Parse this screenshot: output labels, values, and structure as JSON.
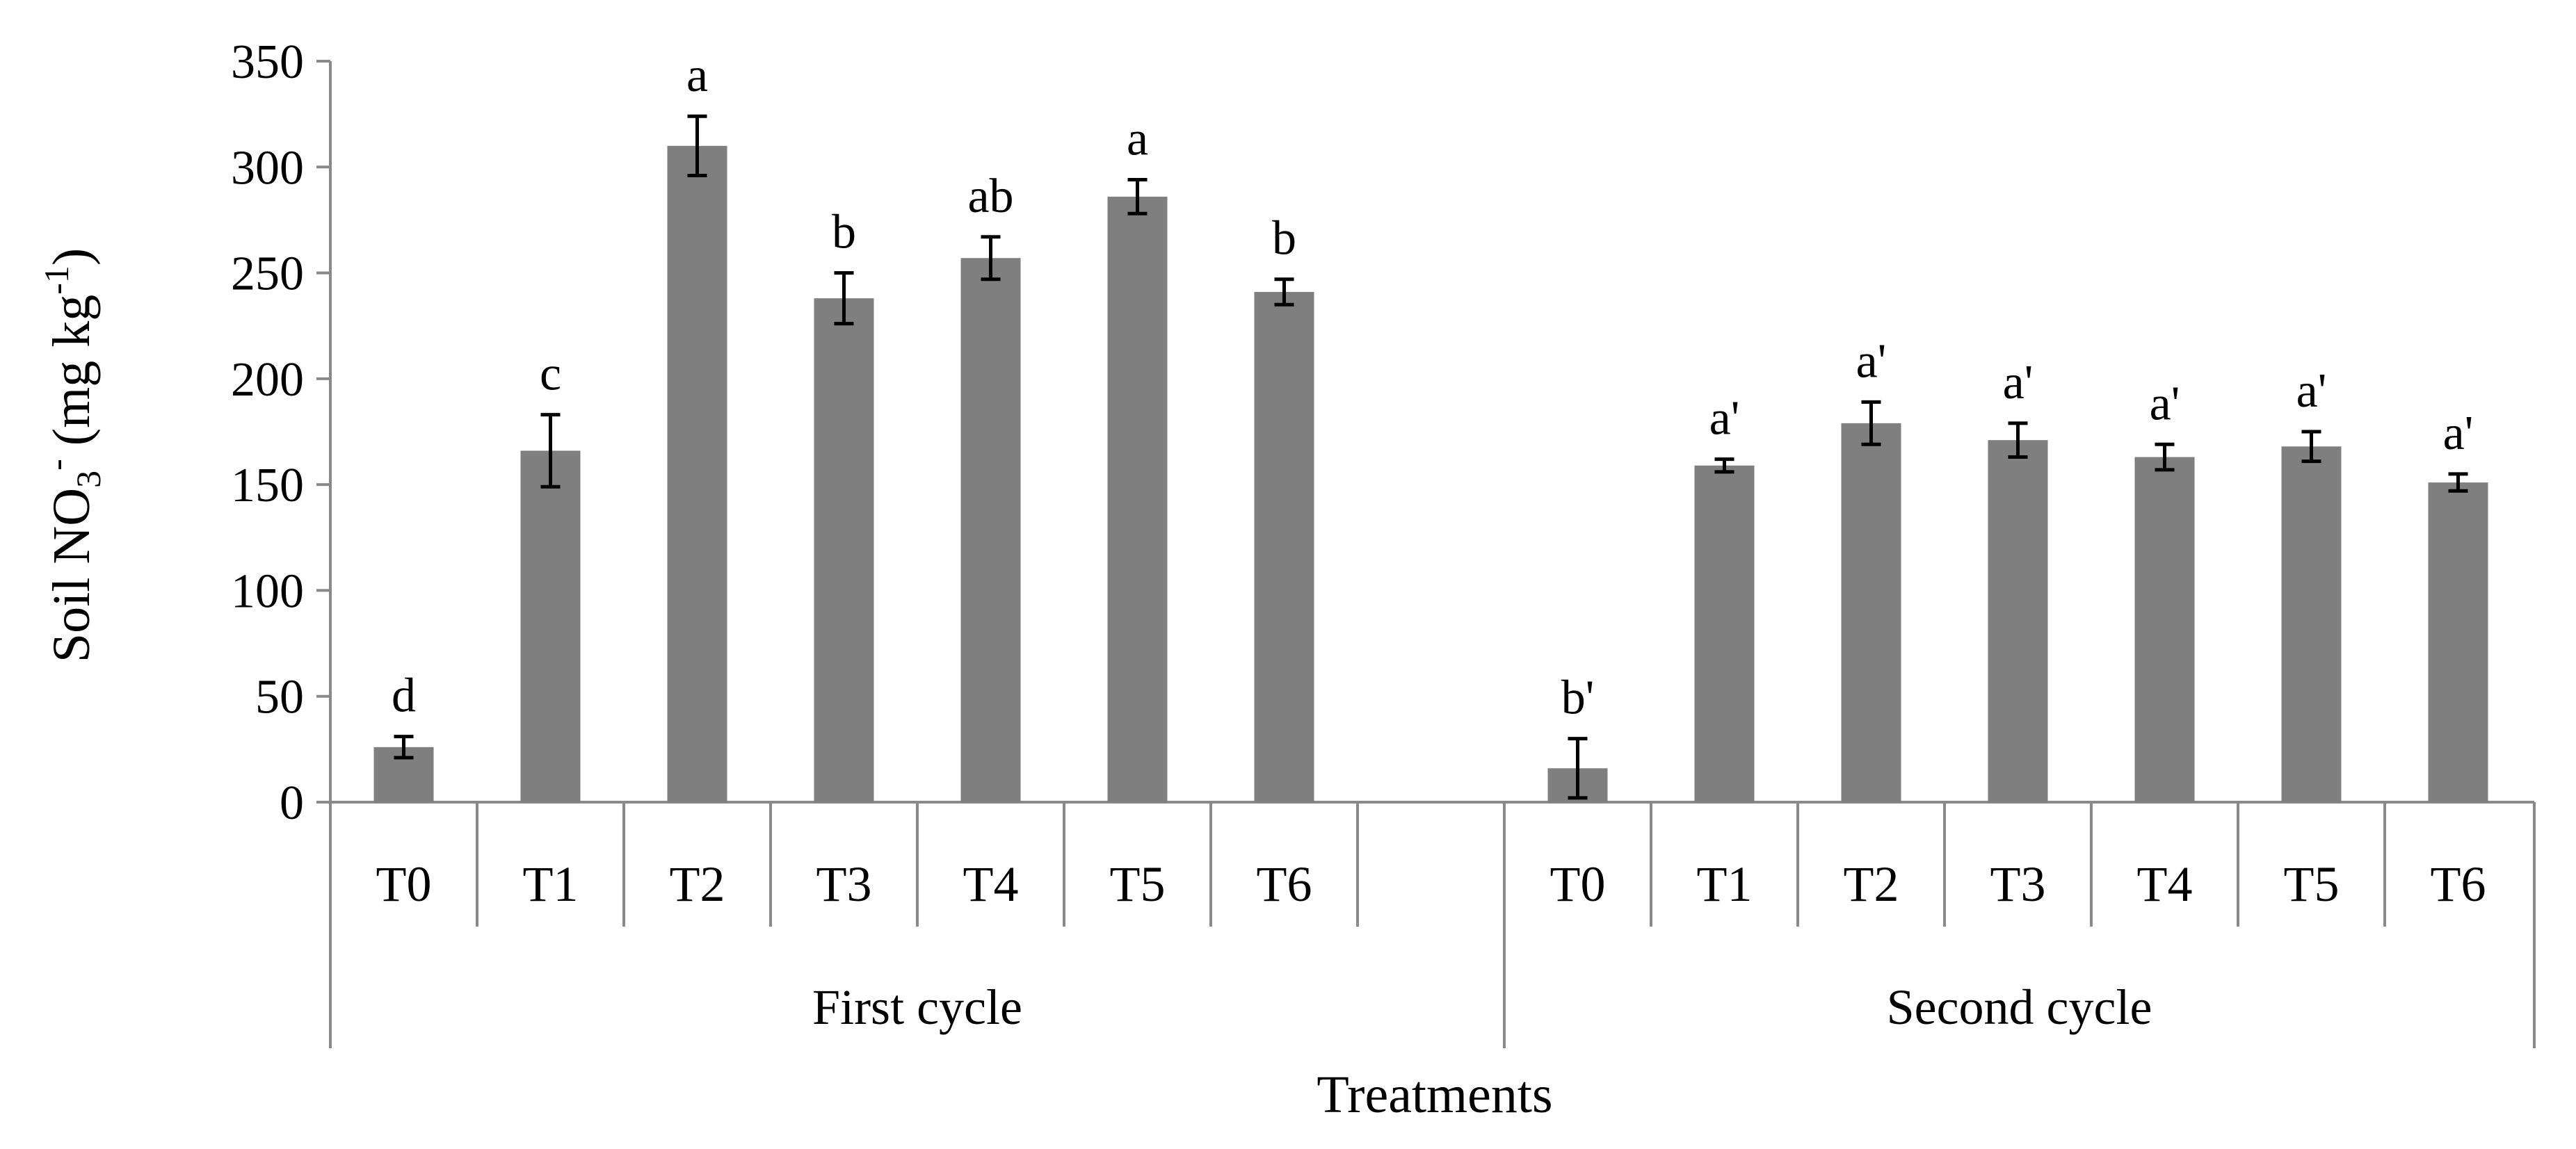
{
  "chart_data": {
    "type": "bar",
    "title": "",
    "xlabel": "Treatments",
    "ylabel": {
      "main": "Soil NO",
      "sub": "3",
      "sup1": "-",
      "mid": " (mg kg",
      "sup2": "-1",
      "end": ")"
    },
    "ylim": [
      0,
      350
    ],
    "yticks": [
      0,
      50,
      100,
      150,
      200,
      250,
      300,
      350
    ],
    "grid": false,
    "legend": "none",
    "bar_color": "#7f7f7f",
    "groups": [
      {
        "name": "First cycle",
        "categories": [
          "T0",
          "T1",
          "T2",
          "T3",
          "T4",
          "T5",
          "T6"
        ],
        "values": [
          26,
          166,
          310,
          238,
          257,
          286,
          241
        ],
        "errors": [
          5,
          17,
          14,
          12,
          10,
          8,
          6
        ],
        "letters": [
          "d",
          "c",
          "a",
          "b",
          "ab",
          "a",
          "b"
        ]
      },
      {
        "name": "Second cycle",
        "categories": [
          "T0",
          "T1",
          "T2",
          "T3",
          "T4",
          "T5",
          "T6"
        ],
        "values": [
          16,
          159,
          179,
          171,
          163,
          168,
          151
        ],
        "errors": [
          14,
          3,
          10,
          8,
          6,
          7,
          4
        ],
        "letters": [
          "b'",
          "a'",
          "a'",
          "a'",
          "a'",
          "a'",
          "a'"
        ]
      }
    ]
  }
}
